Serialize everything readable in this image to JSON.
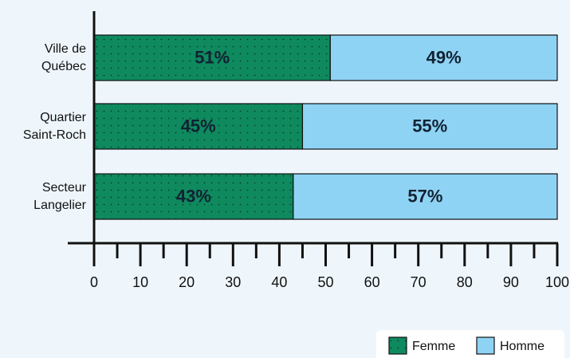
{
  "chart_data": {
    "type": "stacked-bar-horizontal",
    "categories": [
      "Ville de\nQuébec",
      "Quartier\nSaint-Roch",
      "Secteur\nLangelier"
    ],
    "series": [
      {
        "name": "Femme",
        "color": "#0f8a5f",
        "values": [
          51,
          45,
          43
        ],
        "value_labels": [
          "51%",
          "45%",
          "43%"
        ]
      },
      {
        "name": "Homme",
        "color": "#8fd3f4",
        "values": [
          49,
          55,
          57
        ],
        "value_labels": [
          "49%",
          "55%",
          "57%"
        ]
      }
    ],
    "xlim": [
      0,
      100
    ],
    "xticks": [
      0,
      10,
      20,
      30,
      40,
      50,
      60,
      70,
      80,
      90,
      100
    ],
    "xminor_ticks": [
      5,
      15,
      25,
      35,
      45,
      55,
      65,
      75,
      85,
      95
    ],
    "legend": "bottom-right"
  }
}
